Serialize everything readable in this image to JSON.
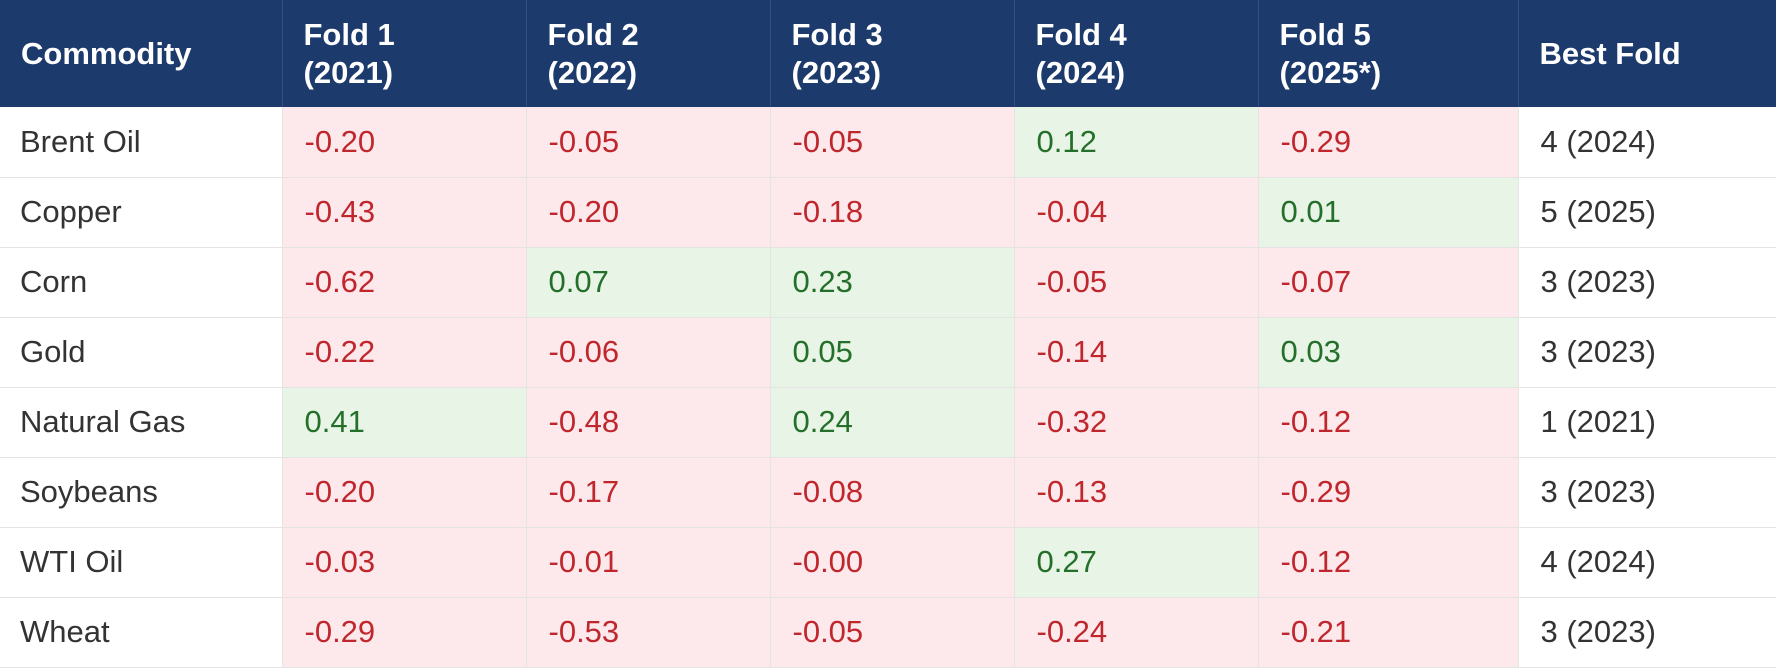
{
  "colors": {
    "header_bg": "#1d3a6d",
    "header_text": "#ffffff",
    "negative_text": "#c0272d",
    "negative_bg": "#fde8ec",
    "positive_text": "#24702a",
    "positive_bg": "#e8f4e6"
  },
  "table": {
    "headers": [
      {
        "line1": "Commodity",
        "line2": ""
      },
      {
        "line1": "Fold 1",
        "line2": "(2021)"
      },
      {
        "line1": "Fold 2",
        "line2": "(2022)"
      },
      {
        "line1": "Fold 3",
        "line2": "(2023)"
      },
      {
        "line1": "Fold 4",
        "line2": "(2024)"
      },
      {
        "line1": "Fold 5",
        "line2": "(2025*)"
      },
      {
        "line1": "Best Fold",
        "line2": ""
      }
    ],
    "rows": [
      {
        "commodity": "Brent Oil",
        "folds": [
          "-0.20",
          "-0.05",
          "-0.05",
          "0.12",
          "-0.29"
        ],
        "best": "4 (2024)"
      },
      {
        "commodity": "Copper",
        "folds": [
          "-0.43",
          "-0.20",
          "-0.18",
          "-0.04",
          "0.01"
        ],
        "best": "5 (2025)"
      },
      {
        "commodity": "Corn",
        "folds": [
          "-0.62",
          "0.07",
          "0.23",
          "-0.05",
          "-0.07"
        ],
        "best": "3 (2023)"
      },
      {
        "commodity": "Gold",
        "folds": [
          "-0.22",
          "-0.06",
          "0.05",
          "-0.14",
          "0.03"
        ],
        "best": "3 (2023)"
      },
      {
        "commodity": "Natural Gas",
        "folds": [
          "0.41",
          "-0.48",
          "0.24",
          "-0.32",
          "-0.12"
        ],
        "best": "1 (2021)"
      },
      {
        "commodity": "Soybeans",
        "folds": [
          "-0.20",
          "-0.17",
          "-0.08",
          "-0.13",
          "-0.29"
        ],
        "best": "3 (2023)"
      },
      {
        "commodity": "WTI Oil",
        "folds": [
          "-0.03",
          "-0.01",
          "-0.00",
          "0.27",
          "-0.12"
        ],
        "best": "4 (2024)"
      },
      {
        "commodity": "Wheat",
        "folds": [
          "-0.29",
          "-0.53",
          "-0.05",
          "-0.24",
          "-0.21"
        ],
        "best": "3 (2023)"
      }
    ]
  }
}
